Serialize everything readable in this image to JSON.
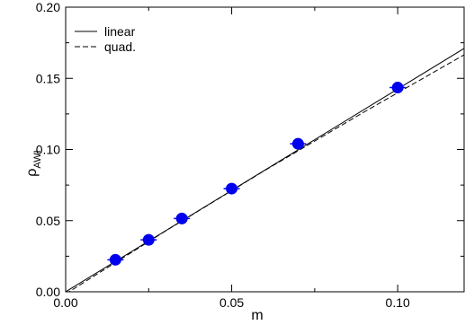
{
  "chart_data": {
    "type": "scatter",
    "xlabel": "m",
    "ylabel": "ρ",
    "ylabel_subscript": "AWI",
    "xlim": [
      0.0,
      0.12
    ],
    "ylim": [
      0.0,
      0.2
    ],
    "x_ticks": [
      0.0,
      0.05,
      0.1
    ],
    "x_tick_labels": [
      "0.00",
      "0.05",
      "0.10"
    ],
    "y_ticks": [
      0.0,
      0.05,
      0.1,
      0.15,
      0.2
    ],
    "y_tick_labels": [
      "0.00",
      "0.05",
      "0.10",
      "0.15",
      "0.20"
    ],
    "grid": false,
    "legend_position": "top-left",
    "point_color": "#0000ee",
    "points": [
      {
        "x": 0.015,
        "y": 0.0225,
        "yerr": 0.001
      },
      {
        "x": 0.025,
        "y": 0.0365,
        "yerr": 0.001
      },
      {
        "x": 0.035,
        "y": 0.0515,
        "yerr": 0.001
      },
      {
        "x": 0.05,
        "y": 0.0725,
        "yerr": 0.001
      },
      {
        "x": 0.07,
        "y": 0.104,
        "yerr": 0.001
      },
      {
        "x": 0.1,
        "y": 0.1435,
        "yerr": 0.001
      }
    ],
    "fits": [
      {
        "name": "linear",
        "style": "solid",
        "x": [
          0.0,
          0.12
        ],
        "y": [
          0.0,
          0.171
        ]
      },
      {
        "name": "quad.",
        "style": "dashed",
        "x": [
          0.0,
          0.03,
          0.06,
          0.09,
          0.12
        ],
        "y": [
          -0.0015,
          0.0426,
          0.0853,
          0.1265,
          0.1665
        ]
      }
    ]
  }
}
